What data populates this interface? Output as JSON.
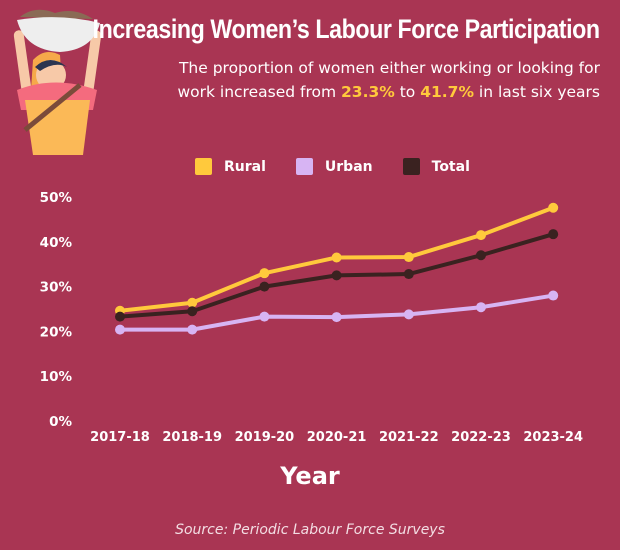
{
  "title": "Increasing Women’s Labour Force Participation",
  "subtitle": {
    "part1": "The proportion of women either working or looking for work increased from ",
    "from": "23.3%",
    "part2": " to ",
    "to": "41.7%",
    "part3": " in last six years"
  },
  "source": "Source: Periodic Labour Force Surveys",
  "illustration_icon": "woman-carrying-basket-illustration",
  "chart_data": {
    "type": "line",
    "title": "Increasing Women’s Labour Force Participation",
    "xlabel": "Year",
    "ylabel": "",
    "categories": [
      "2017-18",
      "2018-19",
      "2019-20",
      "2020-21",
      "2021-22",
      "2022-23",
      "2023-24"
    ],
    "yticks": [
      "0%",
      "10%",
      "20%",
      "30%",
      "40%",
      "50%"
    ],
    "ylim": [
      0,
      50
    ],
    "grid": false,
    "legend_position": "top",
    "series": [
      {
        "name": "Rural",
        "color": "#ffc93c",
        "values": [
          24.6,
          26.4,
          33.0,
          36.5,
          36.6,
          41.5,
          47.6
        ]
      },
      {
        "name": "Urban",
        "color": "#d7b4f3",
        "values": [
          20.4,
          20.4,
          23.3,
          23.2,
          23.8,
          25.4,
          28.0
        ]
      },
      {
        "name": "Total",
        "color": "#3a2220",
        "values": [
          23.3,
          24.5,
          30.0,
          32.5,
          32.8,
          37.0,
          41.7
        ]
      }
    ]
  }
}
